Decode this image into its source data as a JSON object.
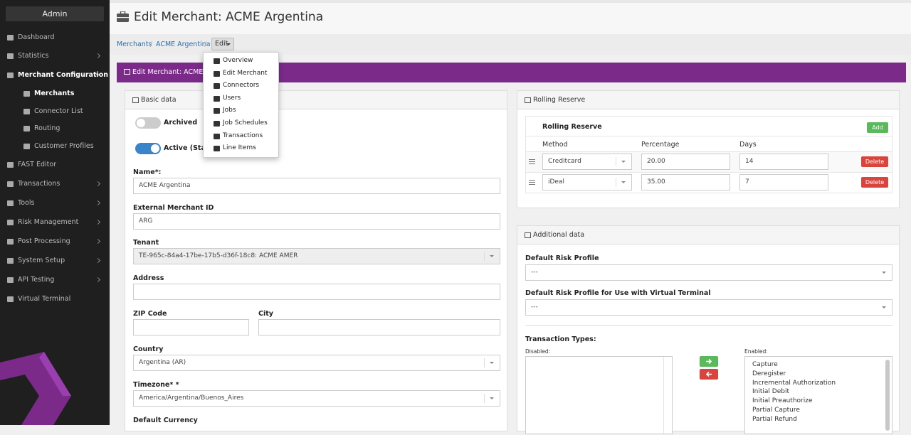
{
  "sidebar": {
    "brand": "Admin",
    "items": [
      {
        "label": "Dashboard"
      },
      {
        "label": "Statistics",
        "expandable": true
      },
      {
        "label": "Merchant Configuration",
        "expandable": true,
        "open": true,
        "children": [
          {
            "label": "Merchants",
            "active": true
          },
          {
            "label": "Connector List"
          },
          {
            "label": "Routing"
          },
          {
            "label": "Customer Profiles"
          }
        ]
      },
      {
        "label": "FAST Editor"
      },
      {
        "label": "Transactions",
        "expandable": true
      },
      {
        "label": "Tools",
        "expandable": true
      },
      {
        "label": "Risk Management",
        "expandable": true
      },
      {
        "label": "Post Processing",
        "expandable": true
      },
      {
        "label": "System Setup",
        "expandable": true
      },
      {
        "label": "API Testing",
        "expandable": true
      },
      {
        "label": "Virtual Terminal"
      }
    ]
  },
  "header": {
    "title": "Edit Merchant: ACME Argentina"
  },
  "breadcrumb": {
    "items": [
      "Merchants",
      "ACME Argentina"
    ],
    "button": "Edit"
  },
  "dropdown": {
    "items": [
      "Overview",
      "Edit Merchant",
      "Connectors",
      "Users",
      "Jobs",
      "Job Schedules",
      "Transactions",
      "Line Items"
    ]
  },
  "panel_title": "Edit Merchant: ACME Argentina",
  "basic_data": {
    "heading": "Basic data",
    "toggles": [
      {
        "label": "Archived",
        "on": false
      },
      {
        "label": "Active (Status)",
        "on": true
      }
    ],
    "name_label": "Name*:",
    "name_value": "ACME Argentina",
    "external_id_label": "External Merchant ID",
    "external_id_value": "ARG",
    "tenant_label": "Tenant",
    "tenant_value": "TE-965c-84a4-17be-17b5-d36f-18c8: ACME AMER",
    "address_label": "Address",
    "zip_label": "ZIP Code",
    "city_label": "City",
    "country_label": "Country",
    "country_value": "Argentina (AR)",
    "timezone_label": "Timezone* *",
    "timezone_value": "America/Argentina/Buenos_Aires",
    "currency_label": "Default Currency"
  },
  "rolling_reserve": {
    "heading": "Rolling Reserve",
    "table_title": "Rolling Reserve",
    "add_button": "Add",
    "columns": [
      "Method",
      "Percentage",
      "Days"
    ],
    "rows": [
      [
        "Creditcard",
        "20.00",
        "14"
      ],
      [
        "iDeal",
        "35.00",
        "7"
      ]
    ],
    "delete_button": "Delete"
  },
  "additional_data": {
    "heading": "Additional data",
    "risk_label": "Default Risk Profile",
    "risk_value": "---",
    "risk_vt_label": "Default Risk Profile for Use with Virtual Terminal",
    "risk_vt_value": "---",
    "types_label": "Transaction Types:",
    "disabled_label": "Disabled:",
    "enabled_label": "Enabled:",
    "enabled": [
      "Capture",
      "Deregister",
      "Incremental Authorization",
      "Initial Debit",
      "Initial Preauthorize",
      "Partial Capture",
      "Partial Refund"
    ]
  }
}
